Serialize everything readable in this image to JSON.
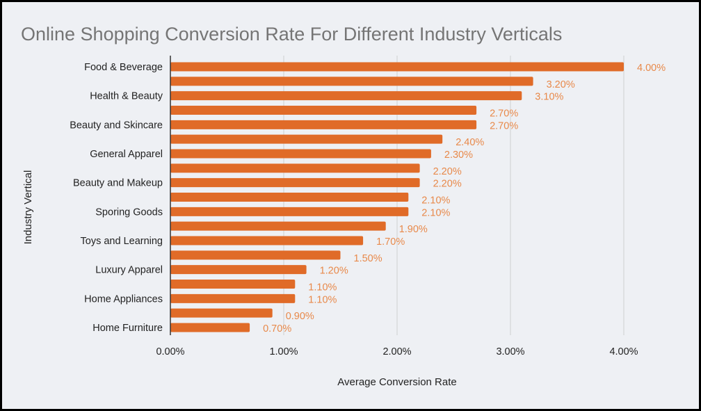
{
  "chart_data": {
    "type": "bar",
    "orientation": "horizontal",
    "title": "Online Shopping Conversion Rate For Different Industry Verticals",
    "xlabel": "Average Conversion Rate",
    "ylabel": "Industry Vertical",
    "categories": [
      "Food & Beverage",
      "",
      "Health & Beauty",
      "",
      "Beauty and Skincare",
      "",
      "General Apparel",
      "",
      "Beauty and Makeup",
      "",
      "Sporing Goods",
      "",
      "Toys and Learning",
      "",
      "Luxury Apparel",
      "",
      "Home Appliances",
      "",
      "Home Furniture"
    ],
    "values": [
      4.0,
      3.2,
      3.1,
      2.7,
      2.7,
      2.4,
      2.3,
      2.2,
      2.2,
      2.1,
      2.1,
      1.9,
      1.7,
      1.5,
      1.2,
      1.1,
      1.1,
      0.9,
      0.7
    ],
    "data_labels": [
      "4.00%",
      "3.20%",
      "3.10%",
      "2.70%",
      "2.70%",
      "2.40%",
      "2.30%",
      "2.20%",
      "2.20%",
      "2.10%",
      "2.10%",
      "1.90%",
      "1.70%",
      "1.50%",
      "1.20%",
      "1.10%",
      "1.10%",
      "0.90%",
      "0.70%"
    ],
    "xlim": [
      0,
      4
    ],
    "xticks": [
      0,
      1,
      2,
      3,
      4
    ],
    "xtick_labels": [
      "0.00%",
      "1.00%",
      "2.00%",
      "3.00%",
      "4.00%"
    ],
    "grid": "vertical",
    "legend": "none",
    "colors": {
      "bar": "#e06b28",
      "data_label": "#e8894a",
      "background": "#eef0f4",
      "title": "#757575",
      "grid": "#cfcfcf"
    }
  }
}
